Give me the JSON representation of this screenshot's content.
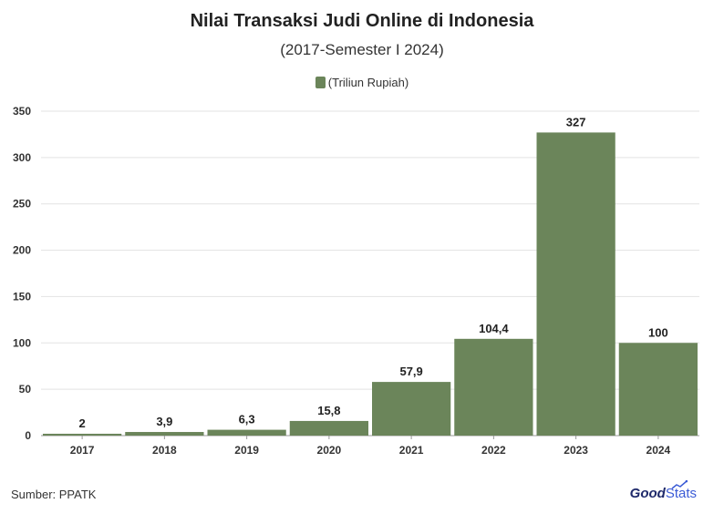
{
  "chart_data": {
    "type": "bar",
    "title": "Nilai Transaksi Judi Online di Indonesia",
    "subtitle": "(2017-Semester I 2024)",
    "legend": "(Triliun Rupiah)",
    "categories": [
      "2017",
      "2018",
      "2019",
      "2020",
      "2021",
      "2022",
      "2023",
      "2024"
    ],
    "values": [
      2,
      3.9,
      6.3,
      15.8,
      57.9,
      104.4,
      327,
      100
    ],
    "value_labels": [
      "2",
      "3,9",
      "6,3",
      "15,8",
      "57,9",
      "104,4",
      "327",
      "100"
    ],
    "yticks": [
      "0",
      "50",
      "100",
      "150",
      "200",
      "250",
      "300",
      "350"
    ],
    "ylim": [
      0,
      350
    ],
    "grid": true,
    "legend_position": "top-center",
    "bar_color": "#6b855a"
  },
  "footer": {
    "source": "Sumber: PPATK",
    "logo_good": "Good",
    "logo_stats": "Stats"
  }
}
